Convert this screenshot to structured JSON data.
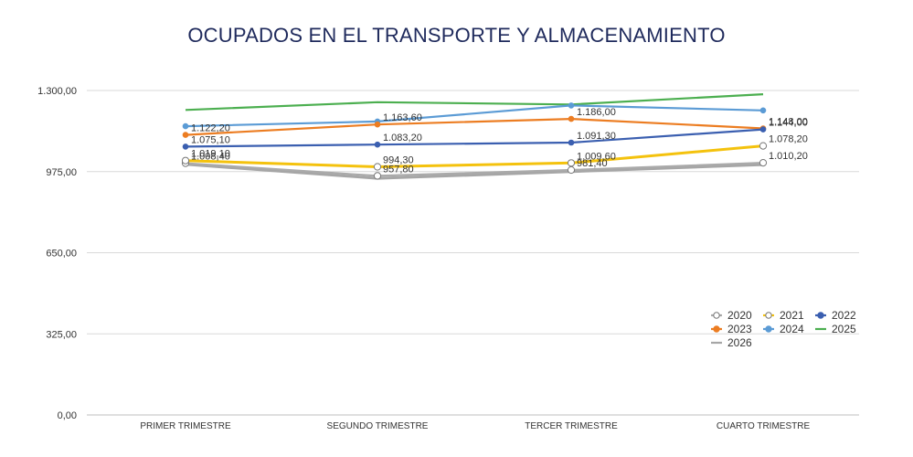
{
  "chart_data": {
    "type": "line",
    "title": "OCUPADOS EN EL TRANSPORTE Y ALMACENAMIENTO",
    "xlabel": "",
    "ylabel": "",
    "categories": [
      "PRIMER TRIMESTRE",
      "SEGUNDO TRIMESTRE",
      "TERCER TRIMESTRE",
      "CUARTO TRIMESTRE"
    ],
    "ylim": [
      0,
      1300
    ],
    "yticks": [
      "0,00",
      "325,00",
      "650,00",
      "975,00",
      "1.300,00"
    ],
    "ytick_values": [
      0,
      325,
      650,
      975,
      1300
    ],
    "grid": true,
    "legend_position": "bottom-right",
    "series": [
      {
        "name": "2020",
        "color": "#aaaaaa",
        "marker": "hollow-circle",
        "labels": true,
        "values": [
          1008.4,
          957.8,
          981.4,
          1010.2
        ],
        "value_labels": [
          "1.008,40",
          "957,80",
          "981,40",
          "1.010,20"
        ]
      },
      {
        "name": "2021",
        "color": "#f4c20d",
        "marker": "hollow-circle",
        "labels": true,
        "values": [
          1019.1,
          994.3,
          1009.6,
          1078.2
        ],
        "value_labels": [
          "1.019,10",
          "994,30",
          "1.009,60",
          "1.078,20"
        ]
      },
      {
        "name": "2022",
        "color": "#3b5fb0",
        "marker": "filled-circle",
        "labels": true,
        "values": [
          1075.1,
          1083.2,
          1091.3,
          1144.0
        ],
        "value_labels": [
          "1.075,10",
          "1.083,20",
          "1.091,30",
          "1.144,00"
        ]
      },
      {
        "name": "2023",
        "color": "#ec7d22",
        "marker": "filled-circle",
        "labels": true,
        "values": [
          1122.2,
          1163.6,
          1186.0,
          1148.0
        ],
        "value_labels": [
          "1.122,20",
          "1.163,60",
          "1.186,00",
          "1.148,00"
        ]
      },
      {
        "name": "2024",
        "color": "#5b9bd5",
        "marker": "filled-circle",
        "labels": false,
        "values": [
          1157.0,
          1176.0,
          1240.0,
          1220.0
        ]
      },
      {
        "name": "2025",
        "color": "#4caf50",
        "marker": "none",
        "labels": false,
        "values": [
          1222.0,
          1253.0,
          1244.0,
          1285.0
        ]
      },
      {
        "name": "2026",
        "color": "#a6a6a6",
        "marker": "none",
        "labels": false,
        "values": [
          1004.0,
          948.0,
          975.0,
          1003.0
        ]
      }
    ]
  }
}
